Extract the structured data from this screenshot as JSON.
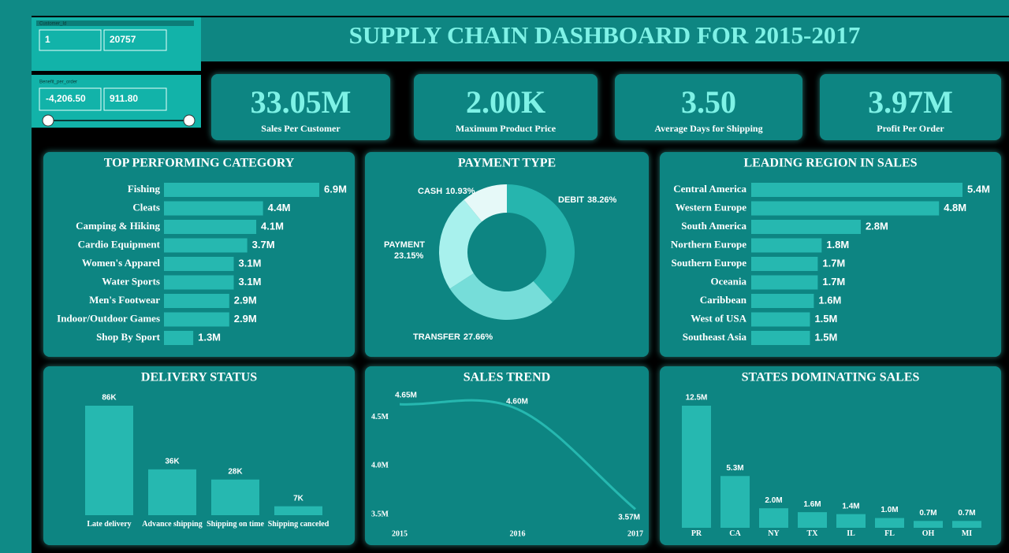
{
  "header": {
    "title": "SUPPLY CHAIN DASHBOARD FOR 2015-2017"
  },
  "slicers": [
    {
      "label": "Customer_Id",
      "min": "1",
      "max": "20757"
    },
    {
      "label": "Benefit_per_order",
      "min": "-4,206.50",
      "max": "911.80"
    }
  ],
  "kpis": [
    {
      "value": "33.05M",
      "label": "Sales Per Customer"
    },
    {
      "value": "2.00K",
      "label": "Maximum Product Price"
    },
    {
      "value": "3.50",
      "label": "Average Days for Shipping"
    },
    {
      "value": "3.97M",
      "label": "Profit Per Order"
    }
  ],
  "chart_data": [
    {
      "type": "hbar",
      "title": "TOP PERFORMING CATEGORY",
      "categories": [
        "Fishing",
        "Cleats",
        "Camping & Hiking",
        "Cardio Equipment",
        "Women's Apparel",
        "Water Sports",
        "Men's Footwear",
        "Indoor/Outdoor Games",
        "Shop By Sport"
      ],
      "values": [
        6.9,
        4.4,
        4.1,
        3.7,
        3.1,
        3.1,
        2.9,
        2.9,
        1.3
      ],
      "value_labels": [
        "6.9M",
        "4.4M",
        "4.1M",
        "3.7M",
        "3.1M",
        "3.1M",
        "2.9M",
        "2.9M",
        "1.3M"
      ],
      "color": "#26b8b0"
    },
    {
      "type": "donut",
      "title": "PAYMENT TYPE",
      "categories": [
        "DEBIT",
        "TRANSFER",
        "PAYMENT",
        "CASH"
      ],
      "values": [
        38.26,
        27.66,
        23.15,
        10.93
      ],
      "value_labels": [
        "38.26%",
        "27.66%",
        "23.15%",
        "10.93%"
      ],
      "colors": [
        "#26b5ae",
        "#76ddd9",
        "#a8f1ed",
        "#e6f9f8"
      ]
    },
    {
      "type": "hbar",
      "title": "LEADING REGION IN SALES",
      "categories": [
        "Central America",
        "Western Europe",
        "South America",
        "Northern Europe",
        "Southern Europe",
        "Oceania",
        "Caribbean",
        "West of USA",
        "Southeast Asia"
      ],
      "values": [
        5.4,
        4.8,
        2.8,
        1.8,
        1.7,
        1.7,
        1.6,
        1.5,
        1.5
      ],
      "value_labels": [
        "5.4M",
        "4.8M",
        "2.8M",
        "1.8M",
        "1.7M",
        "1.7M",
        "1.6M",
        "1.5M",
        "1.5M"
      ],
      "color": "#26b8b0"
    },
    {
      "type": "bar",
      "title": "DELIVERY STATUS",
      "categories": [
        "Late delivery",
        "Advance shipping",
        "Shipping on time",
        "Shipping canceled"
      ],
      "values": [
        86,
        36,
        28,
        7
      ],
      "value_labels": [
        "86K",
        "36K",
        "28K",
        "7K"
      ],
      "color": "#26b8b0"
    },
    {
      "type": "line",
      "title": "SALES TREND",
      "x": [
        2015,
        2016,
        2017
      ],
      "values": [
        4.65,
        4.6,
        3.57
      ],
      "value_labels": [
        "4.65M",
        "4.60M",
        "3.57M"
      ],
      "xlim": [
        2015,
        2017
      ],
      "xticks": [
        2015,
        2016,
        2017
      ],
      "ylim": [
        3.5,
        4.7
      ],
      "yticks": [
        {
          "value": 3.5,
          "label": "3.5M"
        },
        {
          "value": 4.0,
          "label": "4.0M"
        },
        {
          "value": 4.5,
          "label": "4.5M"
        }
      ],
      "color": "#26b8b0"
    },
    {
      "type": "bar",
      "title": "STATES DOMINATING SALES",
      "categories": [
        "PR",
        "CA",
        "NY",
        "TX",
        "IL",
        "FL",
        "OH",
        "MI"
      ],
      "values": [
        12.5,
        5.3,
        2.0,
        1.6,
        1.4,
        1.0,
        0.7,
        0.7
      ],
      "value_labels": [
        "12.5M",
        "5.3M",
        "2.0M",
        "1.6M",
        "1.4M",
        "1.0M",
        "0.7M",
        "0.7M"
      ],
      "color": "#26b8b0"
    }
  ]
}
